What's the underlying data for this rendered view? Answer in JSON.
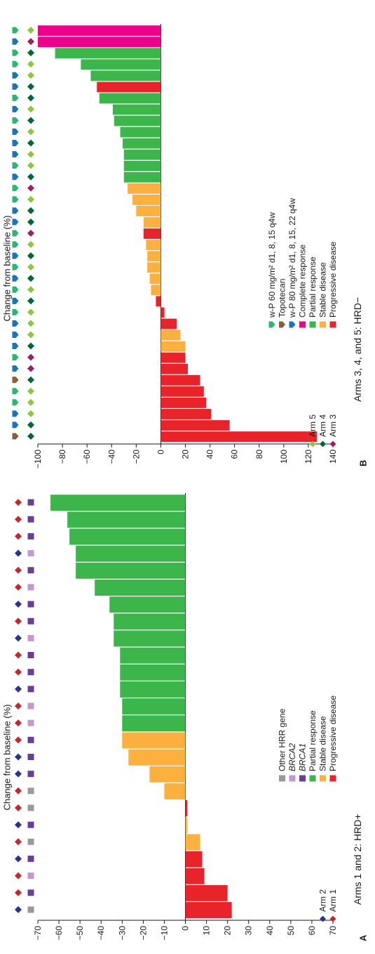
{
  "chart_data": [
    {
      "type": "bar",
      "panel_label": "A",
      "title": "Arms 1 and 2: HRD+",
      "ylabel": "Change from baseline (%)",
      "ylim": [
        -70,
        70
      ],
      "yticks": [
        70,
        60,
        50,
        40,
        30,
        20,
        10,
        0,
        -10,
        -20,
        -30,
        -40,
        -50,
        -60,
        -70
      ],
      "ytick_labels": [
        "70",
        "60",
        "50",
        "40",
        "30",
        "20",
        "10",
        "0",
        "−10",
        "−20",
        "−30",
        "−40",
        "−50",
        "−60",
        "−70"
      ],
      "legend": [
        {
          "label": "Progressive disease",
          "color": "#e8232a",
          "marker": "square"
        },
        {
          "label": "Stable disease",
          "color": "#fbb040",
          "marker": "square"
        },
        {
          "label": "Partial response",
          "color": "#3cb54a",
          "marker": "square"
        },
        {
          "label": "BRCA1",
          "color": "#6a3d9a",
          "marker": "square",
          "italic": true
        },
        {
          "label": "BRCA2",
          "color": "#c398cf",
          "marker": "square",
          "italic": true
        },
        {
          "label": "Other HRR gene",
          "color": "#999999",
          "marker": "square"
        },
        {
          "label": "Arm 1",
          "color": "#c8262d",
          "marker": "diamond"
        },
        {
          "label": "Arm 2",
          "color": "#2e3192",
          "marker": "diamond"
        }
      ],
      "series": [
        {
          "values": [
            22,
            20,
            9,
            8,
            7,
            1,
            1,
            -10,
            -17,
            -27,
            -30,
            -30,
            -30,
            -31,
            -31,
            -31,
            -34,
            -34,
            -36,
            -43,
            -52,
            -52,
            -55,
            -56,
            -64
          ],
          "colors": [
            "#e8232a",
            "#e8232a",
            "#e8232a",
            "#e8232a",
            "#fbb040",
            "#fbb040",
            "#e8232a",
            "#fbb040",
            "#fbb040",
            "#fbb040",
            "#fbb040",
            "#3cb54a",
            "#3cb54a",
            "#3cb54a",
            "#3cb54a",
            "#3cb54a",
            "#3cb54a",
            "#3cb54a",
            "#3cb54a",
            "#3cb54a",
            "#3cb54a",
            "#3cb54a",
            "#3cb54a",
            "#3cb54a",
            "#3cb54a"
          ]
        }
      ],
      "gene_markers": [
        "#999999",
        "#6a3d9a",
        "#c398cf",
        "#6a3d9a",
        "#999999",
        "#6a3d9a",
        "#999999",
        "#999999",
        "#6a3d9a",
        "#6a3d9a",
        "#6a3d9a",
        "#c398cf",
        "#c398cf",
        "#6a3d9a",
        "#6a3d9a",
        "#6a3d9a",
        "#c398cf",
        "#6a3d9a",
        "#6a3d9a",
        "#c398cf",
        "#6a3d9a",
        "#c398cf",
        "#6a3d9a",
        "#6a3d9a",
        "#6a3d9a"
      ],
      "arm_markers": [
        "#2e3192",
        "#c8262d",
        "#c8262d",
        "#2e3192",
        "#c8262d",
        "#2e3192",
        "#c8262d",
        "#c8262d",
        "#2e3192",
        "#2e3192",
        "#c8262d",
        "#c8262d",
        "#c8262d",
        "#2e3192",
        "#c8262d",
        "#c8262d",
        "#2e3192",
        "#c8262d",
        "#2e3192",
        "#c8262d",
        "#c8262d",
        "#2e3192",
        "#c8262d",
        "#c8262d",
        "#c8262d"
      ]
    },
    {
      "type": "bar",
      "panel_label": "B",
      "title": "Arms 3, 4, and 5: HRD−",
      "ylabel": "Change from baseline (%)",
      "ylim": [
        -100,
        140
      ],
      "yticks": [
        140,
        120,
        100,
        80,
        60,
        40,
        20,
        0,
        -20,
        -40,
        -60,
        -80,
        -100
      ],
      "ytick_labels": [
        "140",
        "120",
        "100",
        "80",
        "60",
        "40",
        "20",
        "0",
        "−20",
        "−40",
        "−60",
        "−80",
        "−100"
      ],
      "legend": [
        {
          "label": "Progressive disease",
          "color": "#e8232a",
          "marker": "square"
        },
        {
          "label": "Stable disease",
          "color": "#fbb040",
          "marker": "square"
        },
        {
          "label": "Partial response",
          "color": "#3cb54a",
          "marker": "square"
        },
        {
          "label": "Complete response",
          "color": "#ec008c",
          "marker": "square"
        },
        {
          "label": "w-P 80 mg/m² d1, 8, 15, 22 q4w",
          "color": "#1b75bc",
          "marker": "pentagon"
        },
        {
          "label": "Topotecan",
          "color": "#8b5e3c",
          "marker": "pentagon"
        },
        {
          "label": "w-P 60 mg/m² d1, 8, 15 q4w",
          "color": "#2bb673",
          "marker": "pentagon"
        },
        {
          "label": "Arm 3",
          "color": "#9e1f63",
          "marker": "diamond"
        },
        {
          "label": "Arm 4",
          "color": "#006838",
          "marker": "diamond"
        },
        {
          "label": "Arm 5",
          "color": "#8dc63f",
          "marker": "diamond"
        }
      ],
      "series": [
        {
          "values": [
            127,
            56,
            41,
            37,
            35,
            32,
            22,
            20,
            20,
            16,
            13,
            3,
            -4,
            -8,
            -9,
            -11,
            -11,
            -12,
            -14,
            -14,
            -20,
            -23,
            -27,
            -30,
            -30,
            -30,
            -31,
            -33,
            -38,
            -39,
            -50,
            -52,
            -57,
            -65,
            -86,
            -100,
            -100
          ],
          "colors": [
            "#e8232a",
            "#e8232a",
            "#e8232a",
            "#e8232a",
            "#e8232a",
            "#e8232a",
            "#e8232a",
            "#e8232a",
            "#fbb040",
            "#fbb040",
            "#e8232a",
            "#e8232a",
            "#e8232a",
            "#fbb040",
            "#fbb040",
            "#fbb040",
            "#fbb040",
            "#fbb040",
            "#e8232a",
            "#fbb040",
            "#fbb040",
            "#fbb040",
            "#fbb040",
            "#3cb54a",
            "#3cb54a",
            "#3cb54a",
            "#3cb54a",
            "#3cb54a",
            "#3cb54a",
            "#3cb54a",
            "#3cb54a",
            "#e8232a",
            "#3cb54a",
            "#3cb54a",
            "#3cb54a",
            "#ec008c",
            "#ec008c"
          ]
        }
      ],
      "treatment_markers": [
        "#8b5e3c",
        "#1b75bc",
        "#1b75bc",
        "#2bb673",
        "#2bb673",
        "#8b5e3c",
        "#1b75bc",
        "#2bb673",
        "#1b75bc",
        "#1b75bc",
        "#1b75bc",
        "#2bb673",
        "#1b75bc",
        "#2bb673",
        "#1b75bc",
        "#2bb673",
        "#1b75bc",
        "#2bb673",
        "#2bb673",
        "#1b75bc",
        "#1b75bc",
        "#2bb673",
        "#2bb673",
        "#1b75bc",
        "#2bb673",
        "#1b75bc",
        "#1b75bc",
        "#1b75bc",
        "#2bb673",
        "#1b75bc",
        "#2bb673",
        "#1b75bc",
        "#1b75bc",
        "#2bb673",
        "#2bb673",
        "#1b75bc",
        "#2bb673"
      ],
      "arm_markers": [
        "#006838",
        "#006838",
        "#8dc63f",
        "#8dc63f",
        "#8dc63f",
        "#006838",
        "#9e1f63",
        "#9e1f63",
        "#006838",
        "#8dc63f",
        "#8dc63f",
        "#8dc63f",
        "#006838",
        "#8dc63f",
        "#006838",
        "#8dc63f",
        "#006838",
        "#8dc63f",
        "#9e1f63",
        "#006838",
        "#006838",
        "#8dc63f",
        "#9e1f63",
        "#006838",
        "#8dc63f",
        "#8dc63f",
        "#006838",
        "#8dc63f",
        "#006838",
        "#8dc63f",
        "#006838",
        "#006838",
        "#8dc63f",
        "#8dc63f",
        "#006838",
        "#9e1f63",
        "#8dc63f"
      ]
    }
  ]
}
